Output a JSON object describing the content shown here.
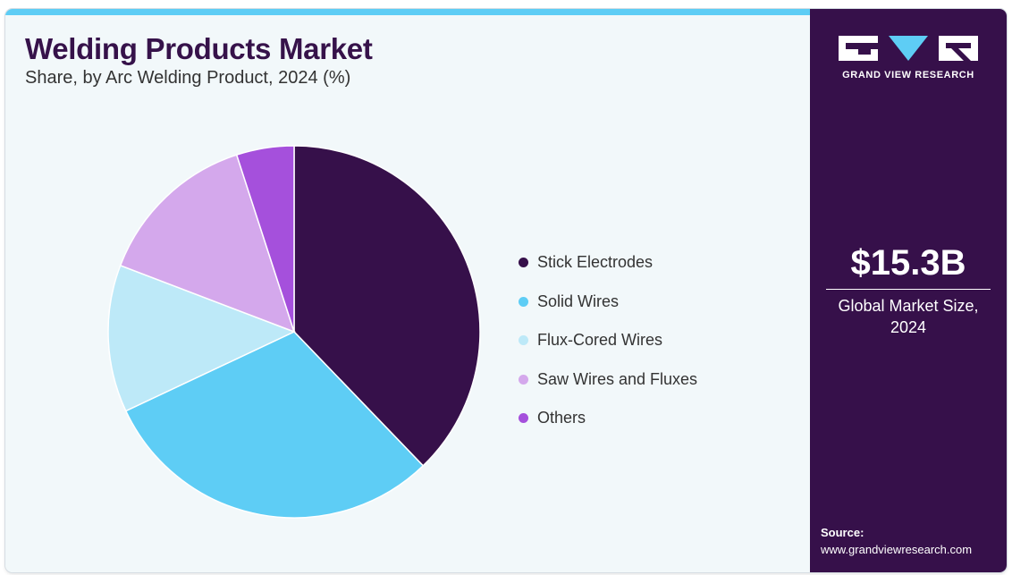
{
  "header": {
    "title": "Welding Products Market",
    "subtitle": "Share, by Arc Welding Product, 2024 (%)"
  },
  "chart_data": {
    "type": "pie",
    "title": "Welding Products Market",
    "subtitle": "Share, by Arc Welding Product, 2024 (%)",
    "start_angle": "12 o'clock",
    "direction": "clockwise",
    "legend_position": "right",
    "slices": [
      {
        "label": "Stick Electrodes",
        "value": 37.8,
        "color": "#36104a"
      },
      {
        "label": "Solid Wires",
        "value": 30.2,
        "color": "#5ecdf5"
      },
      {
        "label": "Flux-Cored Wires",
        "value": 12.8,
        "color": "#bde9f8"
      },
      {
        "label": "Saw Wires and Fluxes",
        "value": 14.2,
        "color": "#d4a8ec"
      },
      {
        "label": "Others",
        "value": 5.0,
        "color": "#a550dc"
      }
    ]
  },
  "sidebar": {
    "brand": "GRAND VIEW RESEARCH",
    "market_value": "$15.3B",
    "market_label_line1": "Global Market Size,",
    "market_label_line2": "2024",
    "source_label": "Source:",
    "source_url": "www.grandviewresearch.com"
  },
  "colors": {
    "accent": "#5ecdf5",
    "brand_dark": "#36104a",
    "background": "#f2f8fa"
  }
}
